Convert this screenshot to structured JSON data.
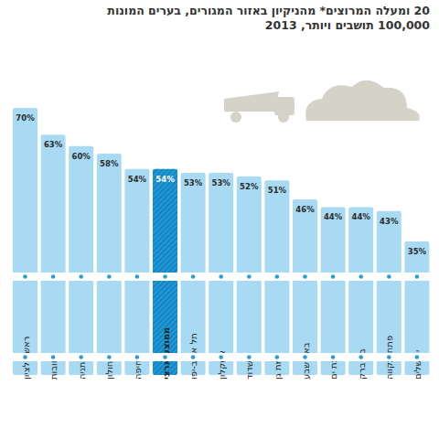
{
  "chart_data": {
    "type": "bar",
    "title": "20 ומעלה המרוצים* מהניקיון באזור המגורים, בערים המונות",
    "subtitle": "100,000 תושבים ויותר, 2013",
    "categories": [
      "ראשון לציון",
      "רחובות",
      "נתניה",
      "חולון",
      "חיפה",
      "ממוצע ארצי",
      "תל אביב-יפו",
      "אשקלון",
      "אשדוד",
      "רמת גן",
      "באר שבע",
      "בת ים",
      "בני ברק",
      "פתח תקווה",
      "ירושלים"
    ],
    "values": [
      70,
      63,
      60,
      58,
      54,
      54,
      53,
      53,
      52,
      51,
      46,
      44,
      44,
      43,
      35
    ],
    "value_labels": [
      "70%",
      "63%",
      "60%",
      "58%",
      "54%",
      "54%",
      "53%",
      "53%",
      "52%",
      "51%",
      "46%",
      "44%",
      "44%",
      "43%",
      "35%"
    ],
    "colors": [
      "#a9daf3",
      "#a9daf3",
      "#a9daf3",
      "#a9daf3",
      "#a9daf3",
      "#1e9ad8",
      "#a9daf3",
      "#a9daf3",
      "#a9daf3",
      "#a9daf3",
      "#a9daf3",
      "#a9daf3",
      "#a9daf3",
      "#a9daf3",
      "#a9daf3"
    ],
    "ylim": [
      0,
      70
    ],
    "data_labels": true,
    "tick_labels": "x",
    "grid": false
  }
}
